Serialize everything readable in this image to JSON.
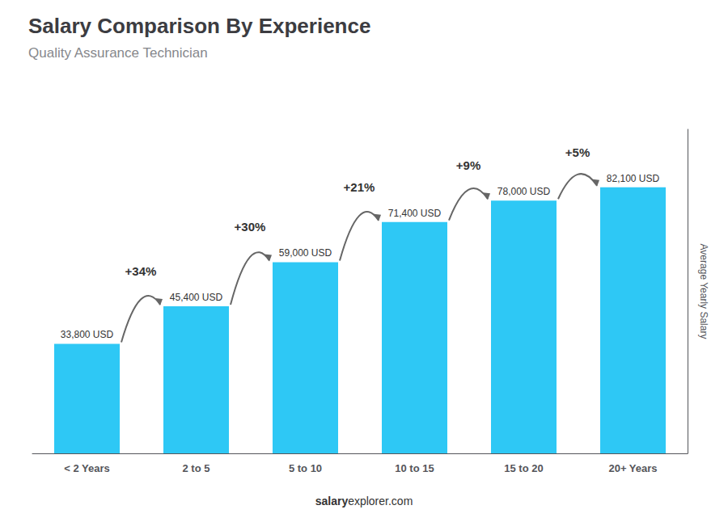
{
  "chart_data": {
    "type": "bar",
    "title": "Salary Comparison By Experience",
    "subtitle": "Quality Assurance Technician",
    "categories": [
      "< 2 Years",
      "2 to 5",
      "5 to 10",
      "10 to 15",
      "15 to 20",
      "20+ Years"
    ],
    "values": [
      33800,
      45400,
      59000,
      71400,
      78000,
      82100
    ],
    "value_labels": [
      "33,800 USD",
      "45,400 USD",
      "59,000 USD",
      "71,400 USD",
      "78,000 USD",
      "82,100 USD"
    ],
    "data_labels": true,
    "color": "#2ec8f5",
    "annotations": [
      "+34%",
      "+30%",
      "+21%",
      "+9%",
      "+5%"
    ],
    "ylabel": "Average Yearly Salary",
    "footer": [
      "salary",
      "explorer.com"
    ],
    "ylim": [
      0,
      100000
    ],
    "grid": false,
    "tick_labels": "x"
  }
}
